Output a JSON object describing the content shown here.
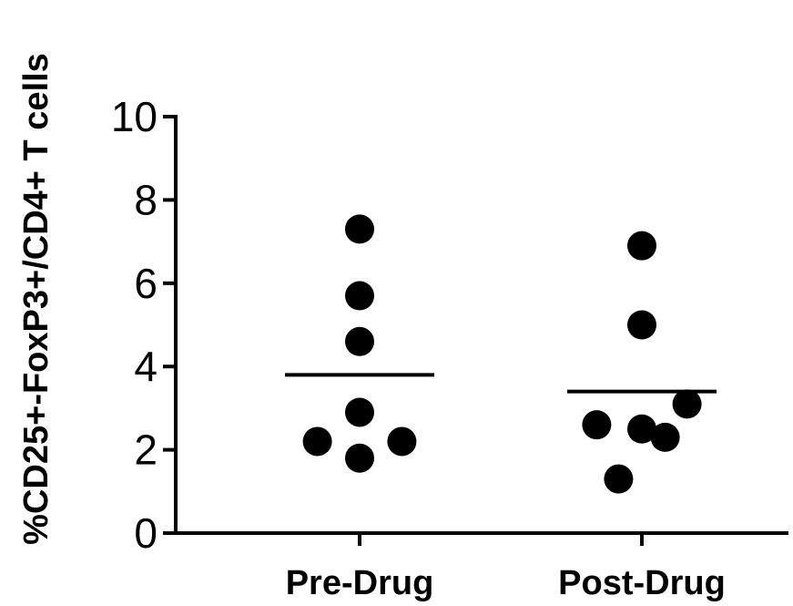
{
  "chart_data": {
    "type": "scatter",
    "title": "",
    "xlabel": "",
    "ylabel": "%CD25+-FoxP3+/CD4+ T cells",
    "categories": [
      "Pre-Drug",
      "Post-Drug"
    ],
    "ylim": [
      0,
      10
    ],
    "yticks": [
      "0",
      "2",
      "4",
      "6",
      "8",
      "10"
    ],
    "grid": false,
    "series": [
      {
        "category": "Pre-Drug",
        "points": [
          {
            "value": 7.3,
            "jitter": 0.0
          },
          {
            "value": 5.7,
            "jitter": 0.0
          },
          {
            "value": 4.6,
            "jitter": 0.0
          },
          {
            "value": 2.9,
            "jitter": 0.0
          },
          {
            "value": 2.2,
            "jitter": -0.29
          },
          {
            "value": 2.2,
            "jitter": 0.29
          },
          {
            "value": 1.8,
            "jitter": 0.0
          }
        ],
        "mean": 3.8
      },
      {
        "category": "Post-Drug",
        "points": [
          {
            "value": 6.9,
            "jitter": 0.0
          },
          {
            "value": 5.0,
            "jitter": 0.0
          },
          {
            "value": 3.1,
            "jitter": 0.31
          },
          {
            "value": 2.6,
            "jitter": -0.31
          },
          {
            "value": 2.5,
            "jitter": 0.0
          },
          {
            "value": 2.3,
            "jitter": 0.16
          },
          {
            "value": 1.3,
            "jitter": -0.16
          }
        ],
        "mean": 3.4
      }
    ],
    "colors": {
      "points": "#000000",
      "axis": "#000000"
    }
  }
}
